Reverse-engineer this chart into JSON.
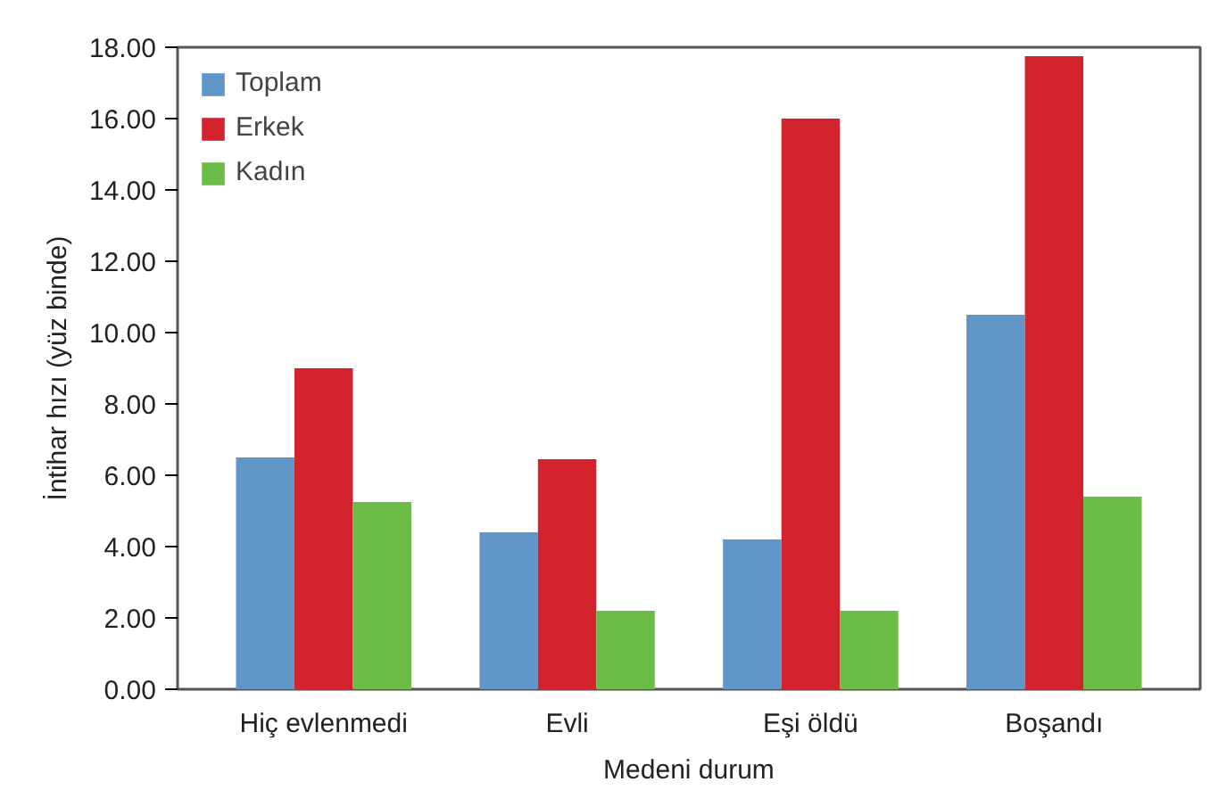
{
  "chart_data": {
    "type": "bar",
    "xlabel": "Medeni durum",
    "ylabel": "İntihar hızı (yüz binde)",
    "categories": [
      "Hiç evlenmedi",
      "Evli",
      "Eşi öldü",
      "Boşandı"
    ],
    "series": [
      {
        "name": "Toplam",
        "color": "#6096c8",
        "values": [
          6.5,
          4.4,
          4.2,
          10.5
        ]
      },
      {
        "name": "Erkek",
        "color": "#d3232c",
        "values": [
          9.0,
          6.45,
          16.0,
          17.75
        ]
      },
      {
        "name": "Kadın",
        "color": "#6cbd45",
        "values": [
          5.25,
          2.2,
          2.2,
          5.4
        ]
      }
    ],
    "ylim": [
      0,
      18
    ],
    "yticks": [
      {
        "value": 0,
        "label": "0.00"
      },
      {
        "value": 2,
        "label": "2.00"
      },
      {
        "value": 4,
        "label": "4.00"
      },
      {
        "value": 6,
        "label": "6.00"
      },
      {
        "value": 8,
        "label": "8.00"
      },
      {
        "value": 10,
        "label": "10.00"
      },
      {
        "value": 12,
        "label": "12.00"
      },
      {
        "value": 14,
        "label": "14.00"
      },
      {
        "value": 16,
        "label": "16.00"
      },
      {
        "value": 18,
        "label": "18.00"
      }
    ],
    "grid": false,
    "legend": "top left"
  }
}
